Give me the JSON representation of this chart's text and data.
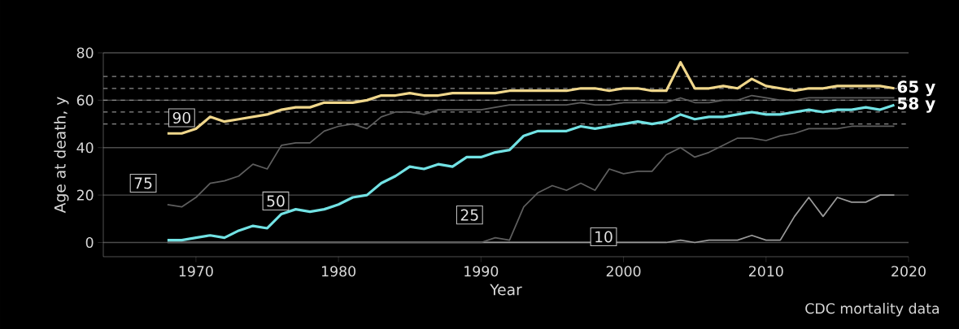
{
  "chart_data": {
    "type": "line",
    "xlabel": "Year",
    "ylabel": "Age at death, y",
    "x": [
      1968,
      1969,
      1970,
      1971,
      1972,
      1973,
      1974,
      1975,
      1976,
      1977,
      1978,
      1979,
      1980,
      1981,
      1982,
      1983,
      1984,
      1985,
      1986,
      1987,
      1988,
      1989,
      1990,
      1991,
      1992,
      1993,
      1994,
      1995,
      1996,
      1997,
      1998,
      1999,
      2000,
      2001,
      2002,
      2003,
      2004,
      2005,
      2006,
      2007,
      2008,
      2009,
      2010,
      2011,
      2012,
      2013,
      2014,
      2015,
      2016,
      2017,
      2018,
      2019
    ],
    "series": [
      {
        "name": "90",
        "color": "#f0d78c",
        "values": [
          46,
          46,
          48,
          53,
          51,
          52,
          53,
          54,
          56,
          57,
          57,
          59,
          59,
          59,
          60,
          62,
          62,
          63,
          62,
          62,
          63,
          63,
          63,
          63,
          64,
          64,
          64,
          64,
          64,
          65,
          65,
          64,
          65,
          65,
          64,
          64,
          76,
          65,
          65,
          66,
          65,
          69,
          66,
          65,
          64,
          65,
          65,
          66,
          66,
          66,
          66,
          65
        ]
      },
      {
        "name": "75",
        "color": "#5e5e5e",
        "values": [
          16,
          15,
          19,
          25,
          26,
          28,
          33,
          31,
          41,
          42,
          42,
          47,
          49,
          50,
          48,
          53,
          55,
          55,
          54,
          56,
          56,
          56,
          56,
          57,
          58,
          58,
          58,
          58,
          58,
          59,
          58,
          58,
          59,
          59,
          59,
          59,
          61,
          59,
          59,
          60,
          60,
          62,
          61,
          60,
          60,
          61,
          61,
          61,
          61,
          61,
          61,
          61
        ]
      },
      {
        "name": "50",
        "color": "#72e2e4",
        "values": [
          1,
          1,
          2,
          3,
          2,
          5,
          7,
          6,
          12,
          14,
          13,
          14,
          16,
          19,
          20,
          25,
          28,
          32,
          31,
          33,
          32,
          36,
          36,
          38,
          39,
          45,
          47,
          47,
          47,
          49,
          48,
          49,
          50,
          51,
          50,
          51,
          54,
          52,
          53,
          53,
          54,
          55,
          54,
          54,
          55,
          56,
          55,
          56,
          56,
          57,
          56,
          58
        ]
      },
      {
        "name": "25",
        "color": "#5e5e5e",
        "values": [
          0,
          0,
          0,
          0,
          0,
          0,
          0,
          0,
          0,
          0,
          0,
          0,
          0,
          0,
          0,
          0,
          0,
          0,
          0,
          0,
          0,
          0,
          0,
          2,
          1,
          15,
          21,
          24,
          22,
          25,
          22,
          31,
          29,
          30,
          30,
          37,
          40,
          36,
          38,
          41,
          44,
          44,
          43,
          45,
          46,
          48,
          48,
          48,
          49,
          49,
          49,
          49
        ]
      },
      {
        "name": "10",
        "color": "#9a9a9a",
        "values": [
          0,
          0,
          0,
          0,
          0,
          0,
          0,
          0,
          0,
          0,
          0,
          0,
          0,
          0,
          0,
          0,
          0,
          0,
          0,
          0,
          0,
          0,
          0,
          0,
          0,
          0,
          0,
          0,
          0,
          0,
          0,
          0,
          0,
          0,
          0,
          0,
          1,
          0,
          1,
          1,
          1,
          3,
          1,
          1,
          11,
          19,
          11,
          19,
          17,
          17,
          20,
          20
        ]
      }
    ],
    "xlim": [
      1963.5,
      2020
    ],
    "ylim": [
      -6,
      80
    ],
    "xticks": [
      1970,
      1980,
      1990,
      2000,
      2010,
      2020
    ],
    "yticks": [
      0,
      20,
      40,
      60,
      80
    ],
    "grid": "y",
    "marker": "none",
    "line_style": "solid",
    "ref_lines": [
      {
        "axis": "y",
        "value": 50,
        "line_style": "dashed"
      },
      {
        "axis": "y",
        "value": 55,
        "line_style": "dashed"
      },
      {
        "axis": "y",
        "value": 60,
        "line_style": "dashed"
      },
      {
        "axis": "y",
        "value": 65,
        "line_style": "dashed"
      },
      {
        "axis": "y",
        "value": 70,
        "line_style": "dashed"
      }
    ],
    "annotations": [
      {
        "text": "65 y",
        "x": 2019,
        "y": 65
      },
      {
        "text": "58 y",
        "x": 2019,
        "y": 58
      },
      "CDC mortality data"
    ]
  }
}
